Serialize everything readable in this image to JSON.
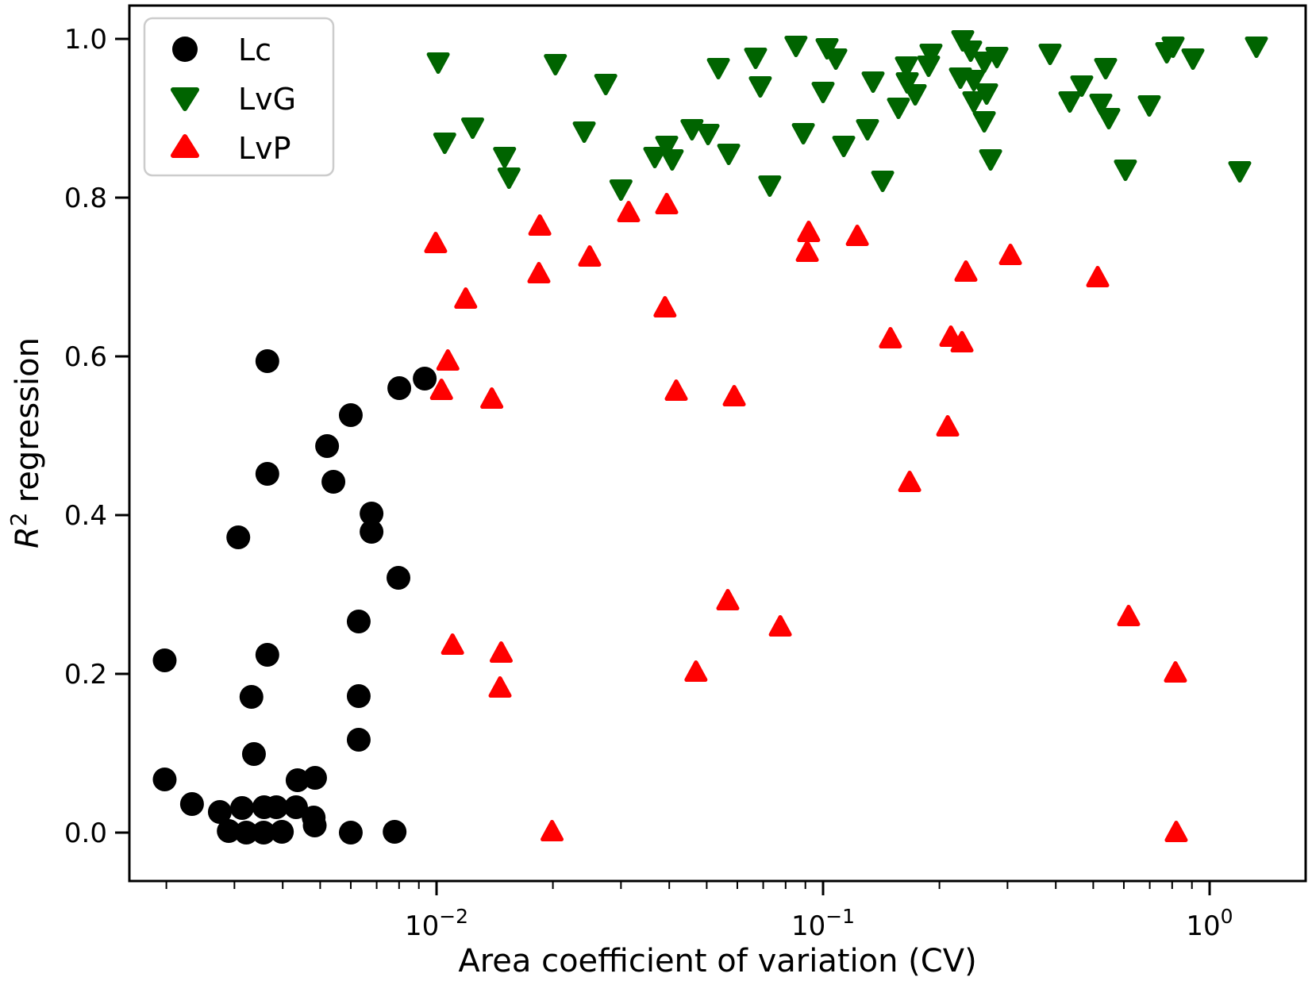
{
  "chart_data": {
    "type": "scatter",
    "title": "",
    "xlabel": "Area coefficient of variation (CV)",
    "ylabel_parts": {
      "symbol": "R",
      "superscript": "2",
      "rest": "regression"
    },
    "x_scale": "log",
    "xlim": [
      0.0016,
      1.77
    ],
    "ylim": [
      -0.061,
      1.042
    ],
    "x_tick_exponents": [
      -2,
      -1,
      0
    ],
    "y_ticks": [
      0.0,
      0.2,
      0.4,
      0.6,
      0.8,
      1.0
    ],
    "grid": false,
    "legend": {
      "position": "upper-left",
      "items": [
        {
          "label": "Lc",
          "marker": "circle",
          "color": "#000000"
        },
        {
          "label": "LvG",
          "marker": "triangle-down",
          "color": "#006400"
        },
        {
          "label": "LvP",
          "marker": "triangle-up",
          "color": "#ff0000"
        }
      ]
    },
    "series": [
      {
        "name": "Lc",
        "marker": "circle",
        "color": "#000000",
        "points": [
          [
            0.00365,
            0.594
          ],
          [
            0.00801,
            0.56
          ],
          [
            0.00932,
            0.572
          ],
          [
            0.006,
            0.526
          ],
          [
            0.00521,
            0.487
          ],
          [
            0.00365,
            0.452
          ],
          [
            0.00541,
            0.442
          ],
          [
            0.00679,
            0.402
          ],
          [
            0.00679,
            0.379
          ],
          [
            0.00307,
            0.372
          ],
          [
            0.00797,
            0.321
          ],
          [
            0.00629,
            0.266
          ],
          [
            0.00198,
            0.217
          ],
          [
            0.00365,
            0.224
          ],
          [
            0.00332,
            0.171
          ],
          [
            0.00629,
            0.172
          ],
          [
            0.00629,
            0.117
          ],
          [
            0.00337,
            0.099
          ],
          [
            0.00198,
            0.067
          ],
          [
            0.00233,
            0.036
          ],
          [
            0.00437,
            0.066
          ],
          [
            0.00485,
            0.069
          ],
          [
            0.00275,
            0.026
          ],
          [
            0.00314,
            0.031
          ],
          [
            0.00358,
            0.032
          ],
          [
            0.00385,
            0.032
          ],
          [
            0.00433,
            0.032
          ],
          [
            0.00481,
            0.019
          ],
          [
            0.0029,
            0.002
          ],
          [
            0.00322,
            0.0
          ],
          [
            0.00357,
            0.0
          ],
          [
            0.00398,
            0.001
          ],
          [
            0.00484,
            0.009
          ],
          [
            0.006,
            0.0
          ],
          [
            0.00779,
            0.001
          ]
        ]
      },
      {
        "name": "LvG",
        "marker": "triangle-down",
        "color": "#006400",
        "points": [
          [
            0.0101,
            0.971
          ],
          [
            0.0203,
            0.969
          ],
          [
            0.0274,
            0.944
          ],
          [
            0.0124,
            0.889
          ],
          [
            0.0105,
            0.87
          ],
          [
            0.015,
            0.852
          ],
          [
            0.0154,
            0.826
          ],
          [
            0.0241,
            0.884
          ],
          [
            0.0394,
            0.866
          ],
          [
            0.0367,
            0.852
          ],
          [
            0.0407,
            0.849
          ],
          [
            0.03,
            0.811
          ],
          [
            0.0458,
            0.887
          ],
          [
            0.0536,
            0.964
          ],
          [
            0.0669,
            0.977
          ],
          [
            0.0688,
            0.941
          ],
          [
            0.0851,
            0.992
          ],
          [
            0.1024,
            0.989
          ],
          [
            0.1079,
            0.976
          ],
          [
            0.1,
            0.934
          ],
          [
            0.1347,
            0.947
          ],
          [
            0.1643,
            0.966
          ],
          [
            0.1651,
            0.946
          ],
          [
            0.1731,
            0.931
          ],
          [
            0.1567,
            0.914
          ],
          [
            0.1902,
            0.982
          ],
          [
            0.1875,
            0.967
          ],
          [
            0.2298,
            0.999
          ],
          [
            0.2409,
            0.986
          ],
          [
            0.2266,
            0.952
          ],
          [
            0.2455,
            0.949
          ],
          [
            0.2612,
            0.972
          ],
          [
            0.2817,
            0.978
          ],
          [
            0.2649,
            0.932
          ],
          [
            0.2455,
            0.922
          ],
          [
            0.2612,
            0.897
          ],
          [
            0.0504,
            0.881
          ],
          [
            0.057,
            0.856
          ],
          [
            0.0889,
            0.882
          ],
          [
            0.1131,
            0.866
          ],
          [
            0.1303,
            0.887
          ],
          [
            0.0728,
            0.816
          ],
          [
            0.1426,
            0.822
          ],
          [
            0.2713,
            0.849
          ],
          [
            0.3866,
            0.982
          ],
          [
            0.5383,
            0.964
          ],
          [
            0.467,
            0.942
          ],
          [
            0.4351,
            0.922
          ],
          [
            0.5232,
            0.919
          ],
          [
            0.5486,
            0.901
          ],
          [
            0.6981,
            0.917
          ],
          [
            0.7747,
            0.984
          ],
          [
            0.9055,
            0.976
          ],
          [
            1.3216,
            0.991
          ],
          [
            1.1967,
            0.834
          ],
          [
            0.6056,
            0.836
          ],
          [
            0.8045,
            0.991
          ]
        ]
      },
      {
        "name": "LvP",
        "marker": "triangle-up",
        "color": "#ff0000",
        "points": [
          [
            0.00995,
            0.742
          ],
          [
            0.0185,
            0.764
          ],
          [
            0.0314,
            0.781
          ],
          [
            0.0394,
            0.791
          ],
          [
            0.0249,
            0.725
          ],
          [
            0.0184,
            0.704
          ],
          [
            0.0119,
            0.672
          ],
          [
            0.0107,
            0.594
          ],
          [
            0.0103,
            0.557
          ],
          [
            0.0139,
            0.546
          ],
          [
            0.039,
            0.661
          ],
          [
            0.0417,
            0.556
          ],
          [
            0.0589,
            0.549
          ],
          [
            0.0918,
            0.756
          ],
          [
            0.091,
            0.731
          ],
          [
            0.1226,
            0.751
          ],
          [
            0.2342,
            0.706
          ],
          [
            0.3053,
            0.727
          ],
          [
            0.1494,
            0.622
          ],
          [
            0.2141,
            0.624
          ],
          [
            0.2288,
            0.617
          ],
          [
            0.2101,
            0.511
          ],
          [
            0.1675,
            0.441
          ],
          [
            0.5134,
            0.699
          ],
          [
            0.011,
            0.236
          ],
          [
            0.0147,
            0.226
          ],
          [
            0.0146,
            0.182
          ],
          [
            0.0567,
            0.292
          ],
          [
            0.0775,
            0.259
          ],
          [
            0.0469,
            0.202
          ],
          [
            0.6173,
            0.272
          ],
          [
            0.8159,
            0.201
          ],
          [
            0.8197,
            0.0
          ],
          [
            0.0199,
            0.001
          ]
        ]
      }
    ]
  }
}
